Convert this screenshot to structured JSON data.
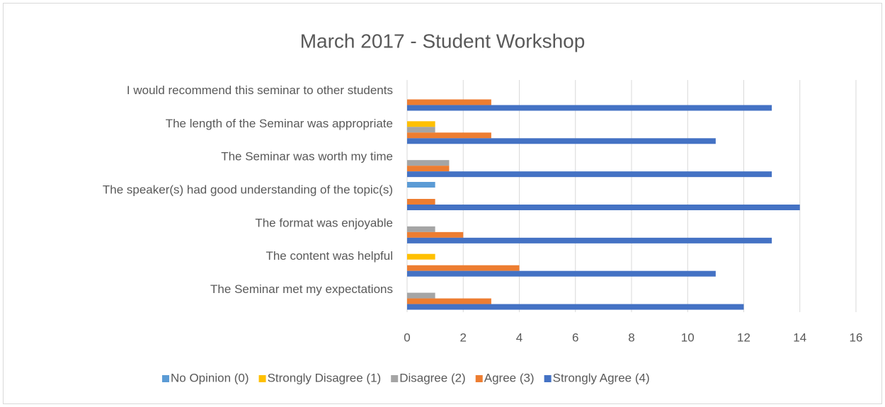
{
  "chart_data": {
    "type": "hbar",
    "title": "March 2017 - Student Workshop",
    "categories": [
      "I would recommend this seminar to other students",
      "The length of the Seminar was appropriate",
      "The Seminar was worth my time",
      "The speaker(s) had good understanding of the topic(s)",
      "The format was enjoyable",
      "The content was helpful",
      "The Seminar met my expectations"
    ],
    "series": [
      {
        "name": "No Opinion (0)",
        "color": "#5b9bd5",
        "values": [
          0,
          0,
          0,
          1,
          0,
          0,
          0
        ]
      },
      {
        "name": "Strongly Disagree (1)",
        "color": "#ffc000",
        "values": [
          0,
          1,
          0,
          0,
          0,
          1,
          0
        ]
      },
      {
        "name": "Disagree (2)",
        "color": "#a5a5a5",
        "values": [
          0,
          1,
          1.5,
          0,
          1,
          0,
          1
        ]
      },
      {
        "name": "Agree (3)",
        "color": "#ed7d31",
        "values": [
          3,
          3,
          1.5,
          1,
          2,
          4,
          3
        ]
      },
      {
        "name": "Strongly Agree (4)",
        "color": "#4472c4",
        "values": [
          13,
          11,
          13,
          14,
          13,
          11,
          12
        ]
      }
    ],
    "xlim": [
      0,
      16
    ],
    "xticks": [
      0,
      2,
      4,
      6,
      8,
      10,
      12,
      14,
      16
    ],
    "grid": true,
    "legend": "bottom"
  }
}
